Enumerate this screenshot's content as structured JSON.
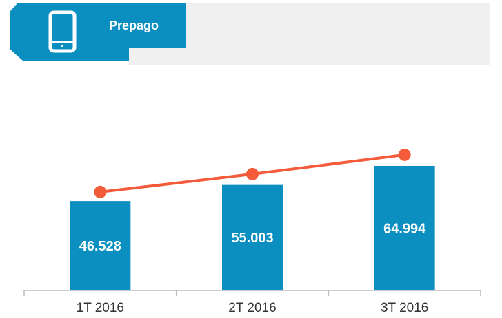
{
  "header": {
    "title": "Prepago"
  },
  "chart_data": {
    "type": "bar",
    "categories": [
      "1T 2016",
      "2T 2016",
      "3T 2016"
    ],
    "series": [
      {
        "values": [
          46.528,
          55.003,
          64.994
        ],
        "color": "#0a8fc0"
      },
      {
        "type": "line",
        "values": [
          51.3,
          60.7,
          70.8
        ],
        "color": "#f45b3a"
      }
    ]
  }
}
